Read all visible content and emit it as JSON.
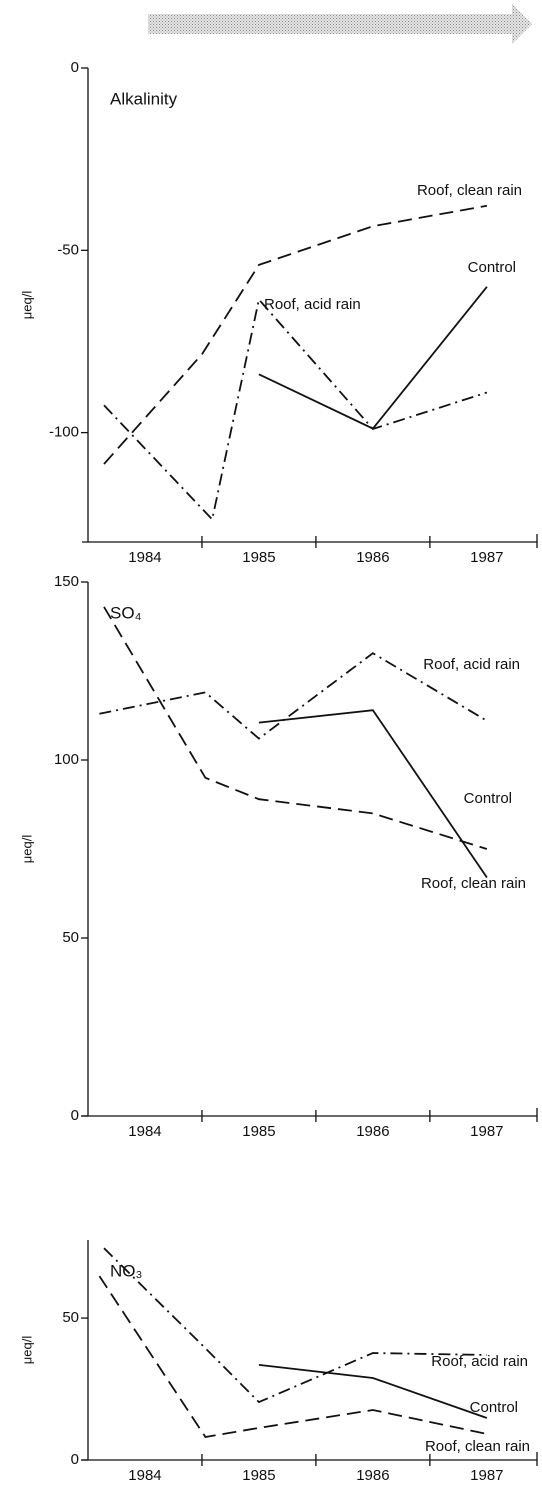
{
  "chart_data": [
    {
      "type": "line",
      "title": "Alkalinity",
      "ylabel": "μeq/l",
      "xlim": [
        1983.5,
        1987.44
      ],
      "xticks": [
        1984,
        1985,
        1986,
        1987
      ],
      "xtick_marks": [
        1984.5,
        1985.5,
        1986.5
      ],
      "ylim": [
        -130,
        0
      ],
      "yticks": [
        0,
        -50,
        -100
      ],
      "series": [
        {
          "name": "Roof, clean rain",
          "color": "#111111",
          "style": "dashed",
          "x": [
            1983.64,
            1984.5,
            1985,
            1986,
            1987
          ],
          "values": [
            -108.6,
            -78.5,
            -54,
            -43.4,
            -37.8
          ]
        },
        {
          "name": "Control",
          "color": "#111111",
          "style": "solid",
          "x": [
            1985,
            1986,
            1987
          ],
          "values": [
            -84,
            -98.9,
            -60
          ]
        },
        {
          "name": "Roof, acid rain",
          "color": "#111111",
          "style": "dashdot",
          "x": [
            1983.64,
            1984.59,
            1985,
            1986,
            1987
          ],
          "values": [
            -92.5,
            -123.8,
            -63.5,
            -99,
            -89
          ]
        }
      ]
    },
    {
      "type": "line",
      "title": "SO₄",
      "ylabel": "μeq/l",
      "xlim": [
        1983.5,
        1987.44
      ],
      "xticks": [
        1984,
        1985,
        1986,
        1987
      ],
      "xtick_marks": [
        1984.5,
        1985.5,
        1986.5
      ],
      "ylim": [
        0,
        150
      ],
      "yticks": [
        150,
        100,
        50,
        0
      ],
      "series": [
        {
          "name": "Roof, acid rain",
          "color": "#111111",
          "style": "dashdot",
          "x": [
            1983.6,
            1984.53,
            1985,
            1986,
            1987
          ],
          "values": [
            113,
            119,
            106,
            130,
            111
          ]
        },
        {
          "name": "Control",
          "color": "#111111",
          "style": "solid",
          "x": [
            1985,
            1986,
            1987
          ],
          "values": [
            110.5,
            114,
            67
          ]
        },
        {
          "name": "Roof, clean rain",
          "color": "#111111",
          "style": "dashed",
          "x": [
            1983.64,
            1984.53,
            1985,
            1986,
            1987
          ],
          "values": [
            143,
            95,
            89,
            85,
            75
          ]
        }
      ]
    },
    {
      "type": "line",
      "title": "NO₃",
      "ylabel": "μeq/l",
      "xlim": [
        1983.5,
        1987.44
      ],
      "xticks": [
        1984,
        1985,
        1986,
        1987
      ],
      "xtick_marks": [
        1984.5,
        1985.5,
        1986.5
      ],
      "ylim": [
        0,
        77.5
      ],
      "yticks": [
        50,
        0
      ],
      "series": [
        {
          "name": "Roof, acid rain",
          "color": "#111111",
          "style": "dashdot",
          "x": [
            1983.64,
            1984.53,
            1985,
            1986,
            1987
          ],
          "values": [
            74.6,
            39.4,
            20.4,
            37.7,
            37
          ]
        },
        {
          "name": "Control",
          "color": "#111111",
          "style": "solid",
          "x": [
            1985,
            1986,
            1987
          ],
          "values": [
            33.5,
            28.9,
            14.8
          ]
        },
        {
          "name": "Roof, clean rain",
          "color": "#111111",
          "style": "dashed",
          "x": [
            1983.6,
            1984.53,
            1985,
            1986,
            1987
          ],
          "values": [
            64.8,
            8.1,
            11.3,
            17.6,
            9.2
          ]
        }
      ]
    }
  ]
}
